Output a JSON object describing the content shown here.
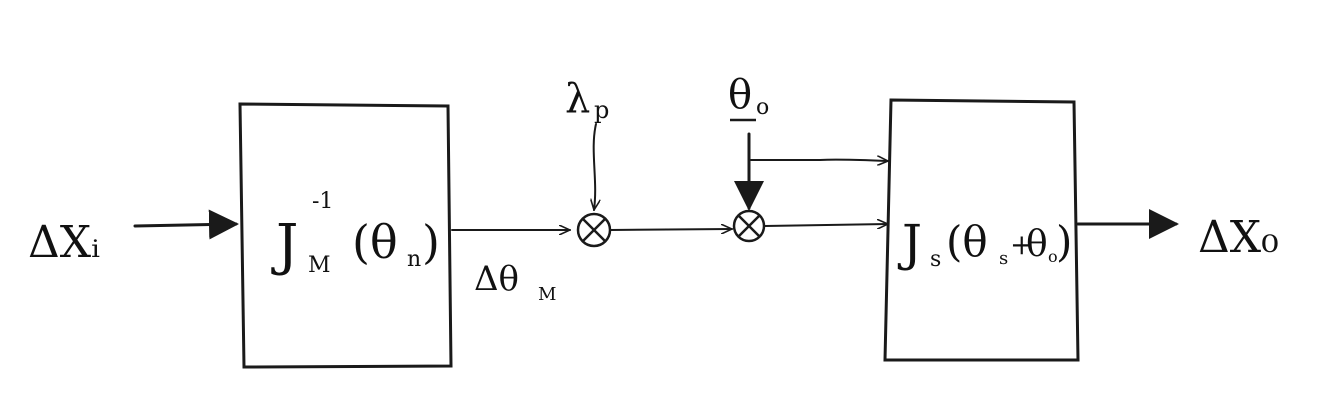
{
  "diagram": {
    "input_label": "ΔXᵢ",
    "output_label": "ΔX₀",
    "block_1": {
      "main": "J",
      "sub": "M",
      "sup": "-1",
      "arg": "(θ",
      "arg_sub": "n",
      "close": ")"
    },
    "block_2": {
      "main": "J",
      "sub": "s",
      "arg": "(θ",
      "arg_sub": "s",
      "plus": "+",
      "arg2": "θ",
      "arg2_sub": "o",
      "close": ")"
    },
    "mid_signal": "Δθ",
    "mid_signal_sub": "M",
    "lambda_label": "λ",
    "lambda_sub": "p",
    "theta_label": "θ",
    "theta_sub": "o",
    "junction_symbol": "×"
  }
}
